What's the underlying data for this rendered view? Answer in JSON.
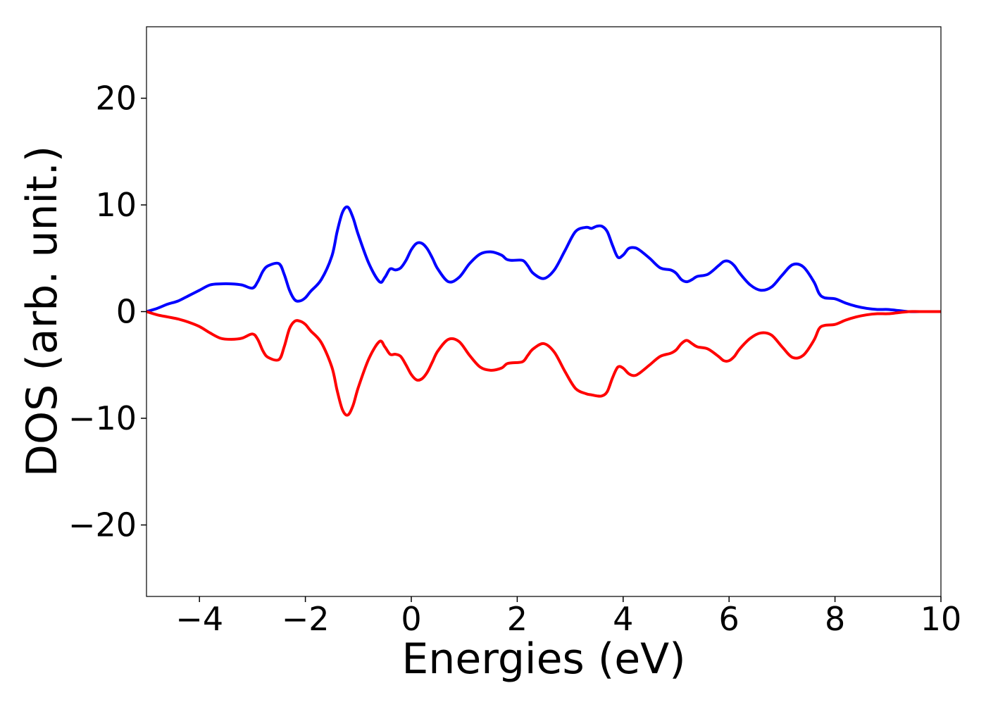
{
  "chart_data": {
    "type": "line",
    "title": "",
    "xlabel": "Energies (eV)",
    "ylabel": "DOS (arb. unit.)",
    "xlim": [
      -5,
      10
    ],
    "ylim": [
      -26.7,
      26.7
    ],
    "x_ticks": [
      -4,
      -2,
      0,
      2,
      4,
      6,
      8,
      10
    ],
    "x_tick_labels": [
      "−4",
      "−2",
      "0",
      "2",
      "4",
      "6",
      "8",
      "10"
    ],
    "y_ticks": [
      -20,
      -10,
      0,
      10,
      20
    ],
    "y_tick_labels": [
      "−20",
      "−10",
      "0",
      "10",
      "20"
    ],
    "grid": false,
    "legend": "none",
    "series": [
      {
        "color": "#0000ff",
        "x": [
          -5.0,
          -4.8,
          -4.6,
          -4.4,
          -4.2,
          -4.0,
          -3.8,
          -3.6,
          -3.4,
          -3.2,
          -3.0,
          -2.9,
          -2.8,
          -2.7,
          -2.5,
          -2.4,
          -2.3,
          -2.2,
          -2.1,
          -2.0,
          -1.9,
          -1.7,
          -1.5,
          -1.4,
          -1.3,
          -1.2,
          -1.1,
          -1.0,
          -0.8,
          -0.6,
          -0.5,
          -0.4,
          -0.3,
          -0.2,
          -0.1,
          0.0,
          0.1,
          0.2,
          0.3,
          0.4,
          0.5,
          0.7,
          0.9,
          1.1,
          1.3,
          1.5,
          1.7,
          1.8,
          1.9,
          2.1,
          2.2,
          2.3,
          2.5,
          2.7,
          2.9,
          3.1,
          3.3,
          3.4,
          3.5,
          3.6,
          3.7,
          3.8,
          3.9,
          4.0,
          4.1,
          4.2,
          4.3,
          4.5,
          4.7,
          4.9,
          5.0,
          5.1,
          5.2,
          5.3,
          5.4,
          5.6,
          5.8,
          5.9,
          6.0,
          6.1,
          6.2,
          6.4,
          6.6,
          6.8,
          7.0,
          7.2,
          7.4,
          7.6,
          7.7,
          7.8,
          8.0,
          8.2,
          8.4,
          8.6,
          8.8,
          9.0,
          9.2,
          9.4,
          9.6,
          10.0
        ],
        "y": [
          0.0,
          0.3,
          0.7,
          1.0,
          1.5,
          2.0,
          2.5,
          2.6,
          2.6,
          2.5,
          2.2,
          2.8,
          3.8,
          4.3,
          4.5,
          3.5,
          2.0,
          1.1,
          1.0,
          1.3,
          1.9,
          3.0,
          5.2,
          7.5,
          9.3,
          9.8,
          8.8,
          7.2,
          4.5,
          2.8,
          3.2,
          4.0,
          3.9,
          4.1,
          4.8,
          5.8,
          6.4,
          6.4,
          5.9,
          5.0,
          4.0,
          2.8,
          3.2,
          4.5,
          5.4,
          5.6,
          5.3,
          4.9,
          4.8,
          4.8,
          4.3,
          3.6,
          3.1,
          3.9,
          5.7,
          7.5,
          7.9,
          7.8,
          8.0,
          8.0,
          7.5,
          6.2,
          5.1,
          5.3,
          5.9,
          6.0,
          5.8,
          5.0,
          4.1,
          3.9,
          3.6,
          3.0,
          2.8,
          3.0,
          3.3,
          3.5,
          4.3,
          4.7,
          4.7,
          4.3,
          3.6,
          2.5,
          2.0,
          2.3,
          3.4,
          4.4,
          4.2,
          2.8,
          1.7,
          1.3,
          1.2,
          0.8,
          0.5,
          0.3,
          0.2,
          0.2,
          0.1,
          0.0,
          0.0,
          0.0
        ]
      },
      {
        "color": "#ff0000",
        "x": [
          -5.0,
          -4.8,
          -4.6,
          -4.4,
          -4.2,
          -4.0,
          -3.8,
          -3.6,
          -3.4,
          -3.2,
          -3.0,
          -2.9,
          -2.8,
          -2.7,
          -2.5,
          -2.4,
          -2.3,
          -2.2,
          -2.1,
          -2.0,
          -1.9,
          -1.7,
          -1.5,
          -1.4,
          -1.3,
          -1.2,
          -1.1,
          -1.0,
          -0.8,
          -0.6,
          -0.5,
          -0.4,
          -0.3,
          -0.2,
          -0.1,
          0.0,
          0.1,
          0.2,
          0.3,
          0.4,
          0.5,
          0.7,
          0.9,
          1.1,
          1.3,
          1.5,
          1.7,
          1.8,
          1.9,
          2.1,
          2.2,
          2.3,
          2.5,
          2.7,
          2.9,
          3.1,
          3.3,
          3.4,
          3.5,
          3.6,
          3.7,
          3.8,
          3.9,
          4.0,
          4.1,
          4.2,
          4.3,
          4.5,
          4.7,
          4.9,
          5.0,
          5.1,
          5.2,
          5.3,
          5.4,
          5.6,
          5.8,
          5.9,
          6.0,
          6.1,
          6.2,
          6.4,
          6.6,
          6.8,
          7.0,
          7.2,
          7.4,
          7.6,
          7.7,
          7.8,
          8.0,
          8.2,
          8.4,
          8.6,
          8.8,
          9.0,
          9.2,
          9.4,
          9.6,
          10.0
        ],
        "y": [
          0.0,
          -0.3,
          -0.5,
          -0.7,
          -1.0,
          -1.4,
          -2.0,
          -2.5,
          -2.6,
          -2.5,
          -2.1,
          -2.6,
          -3.7,
          -4.3,
          -4.5,
          -3.3,
          -1.6,
          -0.9,
          -0.9,
          -1.2,
          -1.8,
          -2.9,
          -5.2,
          -7.4,
          -9.2,
          -9.7,
          -8.8,
          -7.1,
          -4.4,
          -2.8,
          -3.3,
          -4.0,
          -4.0,
          -4.2,
          -5.0,
          -5.9,
          -6.4,
          -6.3,
          -5.7,
          -4.7,
          -3.7,
          -2.6,
          -2.8,
          -4.1,
          -5.2,
          -5.5,
          -5.3,
          -4.9,
          -4.8,
          -4.7,
          -4.1,
          -3.5,
          -3.0,
          -3.8,
          -5.6,
          -7.2,
          -7.7,
          -7.8,
          -7.9,
          -7.9,
          -7.5,
          -6.2,
          -5.2,
          -5.3,
          -5.8,
          -6.0,
          -5.8,
          -5.0,
          -4.2,
          -3.9,
          -3.6,
          -3.0,
          -2.7,
          -3.0,
          -3.3,
          -3.5,
          -4.2,
          -4.6,
          -4.6,
          -4.2,
          -3.5,
          -2.5,
          -2.0,
          -2.2,
          -3.3,
          -4.3,
          -4.1,
          -2.7,
          -1.6,
          -1.3,
          -1.2,
          -0.8,
          -0.5,
          -0.3,
          -0.2,
          -0.2,
          -0.1,
          0.0,
          0.0,
          0.0
        ]
      }
    ]
  }
}
